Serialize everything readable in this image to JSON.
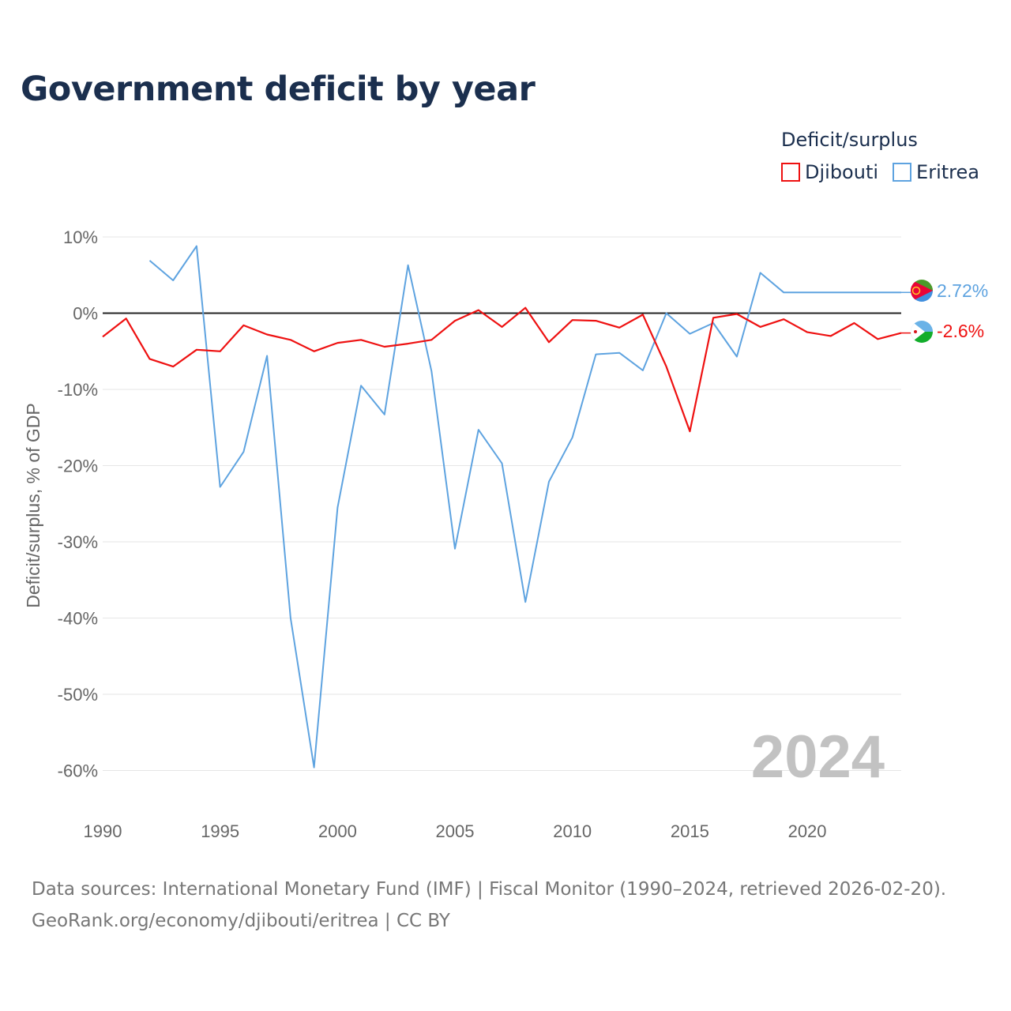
{
  "title": "Government deficit by year",
  "legend": {
    "title": "Deficit/surplus",
    "items": [
      {
        "name": "Djibouti",
        "color": "#ee1111"
      },
      {
        "name": "Eritrea",
        "color": "#5ea3e0"
      }
    ]
  },
  "source": {
    "line1": "Data sources: International Monetary Fund (IMF) | Fiscal Monitor (1990–2024, retrieved 2026-02-20).",
    "line2": "GeoRank.org/economy/djibouti/eritrea | CC BY"
  },
  "chart_data": {
    "type": "line",
    "title": "Government deficit by year",
    "xlabel": "",
    "ylabel": "Deficit/surplus, % of GDP",
    "xlim": [
      1990,
      2024
    ],
    "ylim": [
      -65,
      10
    ],
    "x_ticks": [
      1990,
      1995,
      2000,
      2005,
      2010,
      2015,
      2020
    ],
    "x_tick_labels": [
      "1990",
      "1995",
      "2000",
      "2005",
      "2010",
      "2015",
      "2020"
    ],
    "y_ticks": [
      10,
      0,
      -10,
      -20,
      -30,
      -40,
      -50,
      -60
    ],
    "y_tick_labels": [
      "10%",
      "0%",
      "-10%",
      "-20%",
      "-30%",
      "-40%",
      "-50%",
      "-60%"
    ],
    "watermark_year": "2024",
    "series": [
      {
        "name": "Djibouti",
        "color": "#ee1111",
        "end_label": "-2.6%",
        "x": [
          1990,
          1991,
          1992,
          1993,
          1994,
          1995,
          1996,
          1997,
          1998,
          1999,
          2000,
          2001,
          2002,
          2003,
          2004,
          2005,
          2006,
          2007,
          2008,
          2009,
          2010,
          2011,
          2012,
          2013,
          2014,
          2015,
          2016,
          2017,
          2018,
          2019,
          2020,
          2021,
          2022,
          2023,
          2024
        ],
        "values": [
          -3.1,
          -0.7,
          -6.0,
          -7.0,
          -4.8,
          -5.0,
          -1.6,
          -2.8,
          -3.5,
          -5.0,
          -3.9,
          -3.5,
          -4.4,
          -4.0,
          -3.5,
          -1.0,
          0.4,
          -1.8,
          0.7,
          -3.8,
          -0.9,
          -1.0,
          -1.9,
          -0.2,
          -7.0,
          -15.5,
          -0.6,
          -0.1,
          -1.8,
          -0.8,
          -2.5,
          -3.0,
          -1.3,
          -3.4,
          -2.6
        ]
      },
      {
        "name": "Eritrea",
        "color": "#5ea3e0",
        "end_label": "2.72%",
        "x": [
          1992,
          1993,
          1994,
          1995,
          1996,
          1997,
          1998,
          1999,
          2000,
          2001,
          2002,
          2003,
          2004,
          2005,
          2006,
          2007,
          2008,
          2009,
          2010,
          2011,
          2012,
          2013,
          2014,
          2015,
          2016,
          2017,
          2018,
          2019,
          2020,
          2021,
          2022,
          2023,
          2024
        ],
        "values": [
          6.9,
          4.3,
          8.8,
          -22.8,
          -18.2,
          -5.6,
          -40.0,
          -59.6,
          -25.5,
          -9.5,
          -13.3,
          6.3,
          -7.6,
          -30.9,
          -15.3,
          -19.7,
          -37.9,
          -22.1,
          -16.3,
          -5.4,
          -5.2,
          -7.5,
          0.0,
          -2.7,
          -1.3,
          -5.7,
          5.3,
          2.72,
          2.72,
          2.72,
          2.72,
          2.72,
          2.72
        ]
      }
    ]
  }
}
